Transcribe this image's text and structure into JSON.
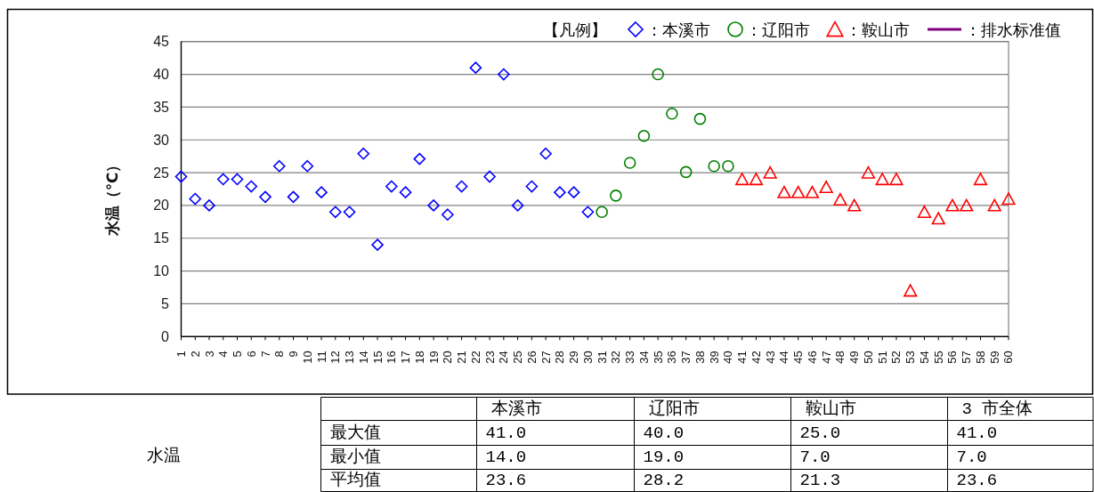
{
  "chart_data": [
    {
      "type": "scatter",
      "ylabel": "水温（℃）",
      "legend_title": "【凡例】",
      "legend": "top right",
      "grid": "y",
      "xlim": [
        1,
        60
      ],
      "xticks": [
        1,
        2,
        3,
        4,
        5,
        6,
        7,
        8,
        9,
        10,
        11,
        12,
        13,
        14,
        15,
        16,
        17,
        18,
        19,
        20,
        21,
        22,
        23,
        24,
        25,
        26,
        27,
        28,
        29,
        30,
        31,
        32,
        33,
        34,
        35,
        36,
        37,
        38,
        39,
        40,
        41,
        42,
        43,
        44,
        45,
        46,
        47,
        48,
        49,
        50,
        51,
        52,
        53,
        54,
        55,
        56,
        57,
        58,
        59,
        60
      ],
      "ylim": [
        0,
        45
      ],
      "yticks": [
        0,
        5,
        10,
        15,
        20,
        25,
        30,
        35,
        40,
        45
      ],
      "series": [
        {
          "name": "：本溪市",
          "color": "#0000ff",
          "marker": "diamond",
          "x": [
            1,
            2,
            3,
            4,
            5,
            6,
            7,
            8,
            9,
            10,
            11,
            12,
            13,
            14,
            15,
            16,
            17,
            18,
            19,
            20,
            21,
            22,
            23,
            24,
            25,
            26,
            27,
            28,
            29,
            30
          ],
          "values": [
            24.4,
            21,
            20,
            24,
            24,
            22.9,
            21.3,
            26,
            21.3,
            26,
            22,
            19,
            19,
            27.9,
            14,
            22.9,
            22,
            27.1,
            20,
            18.6,
            22.9,
            41,
            24.4,
            40,
            20,
            22.9,
            27.9,
            22,
            22,
            19
          ]
        },
        {
          "name": "：辽阳市",
          "color": "#008000",
          "marker": "circle",
          "x": [
            31,
            32,
            33,
            34,
            35,
            36,
            37,
            38,
            39,
            40
          ],
          "values": [
            19,
            21.5,
            26.5,
            30.6,
            40,
            34,
            25.1,
            33.2,
            26,
            26
          ]
        },
        {
          "name": "：鞍山市",
          "color": "#ff0000",
          "marker": "triangle",
          "x": [
            41,
            42,
            43,
            44,
            45,
            46,
            47,
            48,
            49,
            50,
            51,
            52,
            53,
            54,
            55,
            56,
            57,
            58,
            59,
            60
          ],
          "values": [
            24,
            24,
            25,
            22,
            22,
            22,
            22.8,
            20.9,
            20,
            25,
            24,
            24,
            7,
            19,
            18,
            20,
            20,
            24,
            20,
            21
          ]
        },
        {
          "name": "：排水标准值",
          "color": "#800080",
          "type": "line",
          "marker": "none",
          "line_style": "solid"
        }
      ]
    },
    {
      "type": "other",
      "annotations": [
        "水温",
        "本溪市",
        "辽阳市",
        "鞍山市",
        "3 市全体",
        "最大值",
        "41.0",
        "40.0",
        "25.0",
        "41.0",
        "最小值",
        "14.0",
        "19.0",
        "7.0",
        "7.0",
        "平均值",
        "23.6",
        "28.2",
        "21.3",
        "23.6"
      ]
    }
  ]
}
